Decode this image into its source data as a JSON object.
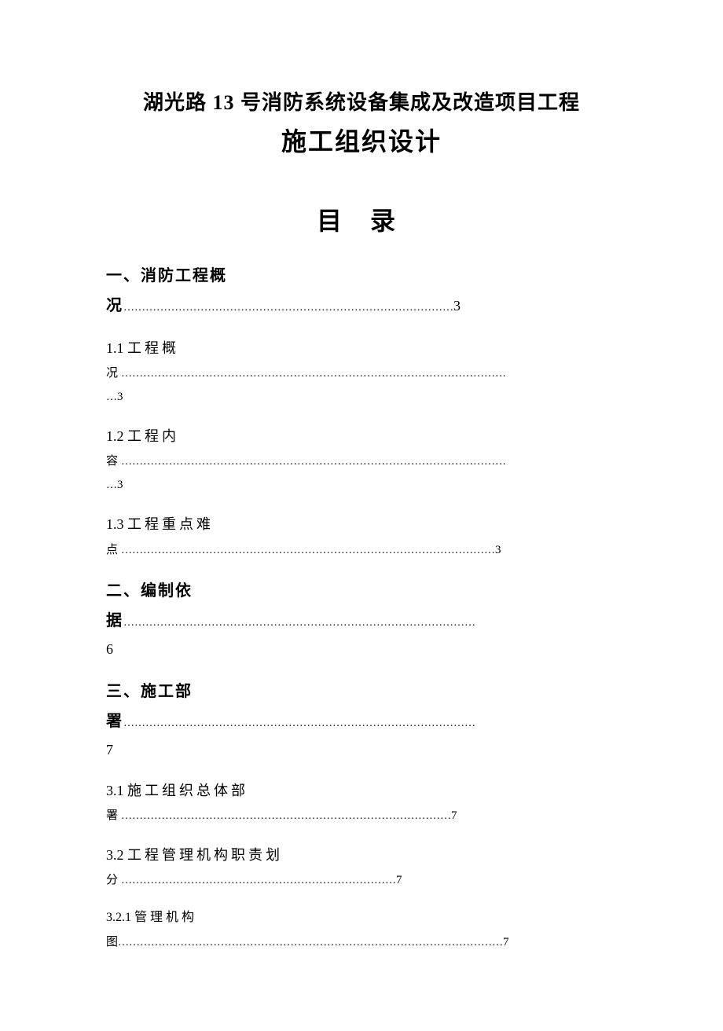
{
  "document": {
    "title_line1": "湖光路 13 号消防系统设备集成及改造项目工程",
    "title_line2": "施工组织设计",
    "toc_heading": "目 录",
    "entries": [
      {
        "level": 1,
        "label": "一、",
        "text_part1": "消防工程概",
        "text_part2": "况",
        "dots": "………………………………………………………………………………",
        "page": "3"
      },
      {
        "level": 2,
        "label": "1.1 ",
        "text_part1": "工程概",
        "text_part2": "况",
        "dots": "……………………………………………………………………………………………",
        "dots2": "…",
        "page": "3"
      },
      {
        "level": 2,
        "label": "1.2 ",
        "text_part1": "工程内",
        "text_part2": "容",
        "dots": "……………………………………………………………………………………………",
        "dots2": "…",
        "page": "3"
      },
      {
        "level": 2,
        "label": "1.3 ",
        "text_part1": "工程重点难",
        "text_part2": "点",
        "dots": "…………………………………………………………………………………………",
        "page": "3"
      },
      {
        "level": 1,
        "label": "二、",
        "text_part1": "编制依",
        "text_part2": "据",
        "dots": "……………………………………………………………………………………",
        "page": "6"
      },
      {
        "level": 1,
        "label": "三、",
        "text_part1": "施工部",
        "text_part2": "署",
        "dots": "……………………………………………………………………………………",
        "page": "7"
      },
      {
        "level": 2,
        "label": "3.1 ",
        "text_part1": "施工组织总体部",
        "text_part2": "署",
        "dots": "………………………………………………………………………………",
        "page": "7"
      },
      {
        "level": 2,
        "label": "3.2 ",
        "text_part1": "工程管理机构职责划",
        "text_part2": "分",
        "dots": "…………………………………………………………………",
        "page": "7"
      },
      {
        "level": 3,
        "label": "3.2.1 ",
        "text_part1": "管理机构",
        "text_part2": "图",
        "dots": "……………………………………………………………………………………………",
        "page": "7"
      }
    ],
    "colors": {
      "background": "#ffffff",
      "text": "#000000"
    },
    "typography": {
      "title_fontsize": 26,
      "subtitle_fontsize": 32,
      "toc_heading_fontsize": 32,
      "level1_fontsize": 20,
      "level2_fontsize": 18,
      "level3_fontsize": 16,
      "font_family": "SimSun"
    }
  }
}
